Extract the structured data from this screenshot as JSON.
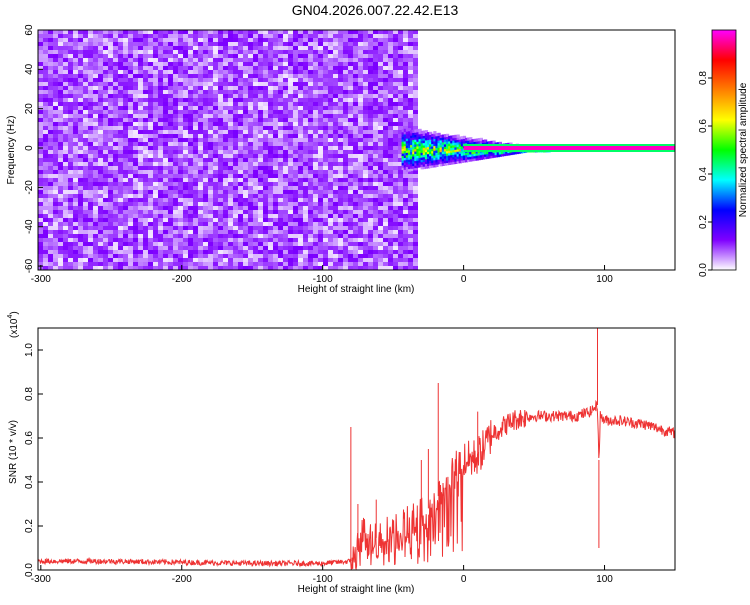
{
  "title": "GN04.2026.007.22.42.E13",
  "chart_data": [
    {
      "type": "heatmap",
      "xlabel": "Height of straight line (km)",
      "ylabel": "Frequency (Hz)",
      "xlim": [
        -302,
        150
      ],
      "ylim": [
        -62,
        60
      ],
      "xticks": [
        -300,
        -200,
        -100,
        0,
        100
      ],
      "yticks": [
        -60,
        -40,
        -20,
        0,
        20,
        40,
        60
      ],
      "colorbar": {
        "label": "Normalized spectral amplitude",
        "range": [
          0,
          1
        ],
        "ticks": [
          "0.0",
          "0.2",
          "0.4",
          "0.6",
          "0.8"
        ],
        "colors": [
          "#ffffff",
          "#7f00ff",
          "#0000ff",
          "#00ffff",
          "#00ff00",
          "#ffff00",
          "#ff7f00",
          "#ff0000",
          "#ff00ff"
        ]
      },
      "regions": [
        {
          "x_range": [
            -302,
            -34
          ],
          "freq_range": [
            -62,
            60
          ],
          "amplitude": 0.1
        },
        {
          "x_range": [
            -44,
            60
          ],
          "freq_range": [
            -12,
            12
          ],
          "amplitude": 0.5
        },
        {
          "x_range": [
            0,
            150
          ],
          "freq_range": [
            -1,
            1
          ],
          "amplitude": 0.97
        }
      ]
    },
    {
      "type": "line",
      "xlabel": "Height of straight line (km)",
      "ylabel": "SNR (10 * v/v)",
      "y_multiplier": "(x10",
      "y_multiplier_exp": "4",
      "y_multiplier_close": ")",
      "xlim": [
        -302,
        150
      ],
      "ylim": [
        0,
        1.1
      ],
      "xticks": [
        -300,
        -200,
        -100,
        0,
        100
      ],
      "yticks": [
        "0.0",
        "0.2",
        "0.4",
        "0.6",
        "0.8",
        "1.0"
      ],
      "series": [
        {
          "color": "#ee3333",
          "x": [
            -302,
            -250,
            -200,
            -150,
            -100,
            -80,
            -76,
            -72,
            -70,
            -65,
            -60,
            -50,
            -40,
            -35,
            -30,
            -25,
            -20,
            -15,
            -10,
            -5,
            0,
            5,
            10,
            15,
            20,
            25,
            30,
            35,
            40,
            50,
            60,
            70,
            80,
            90,
            95,
            96,
            97,
            100,
            110,
            120,
            130,
            140,
            150
          ],
          "y": [
            0.04,
            0.04,
            0.035,
            0.03,
            0.03,
            0.04,
            0.06,
            0.18,
            0.15,
            0.14,
            0.15,
            0.17,
            0.2,
            0.22,
            0.24,
            0.28,
            0.32,
            0.36,
            0.4,
            0.46,
            0.5,
            0.5,
            0.52,
            0.56,
            0.62,
            0.64,
            0.66,
            0.68,
            0.69,
            0.7,
            0.7,
            0.7,
            0.7,
            0.72,
            0.75,
            0.5,
            0.7,
            0.68,
            0.68,
            0.67,
            0.66,
            0.64,
            0.62
          ]
        }
      ],
      "spikes": [
        {
          "x": -80,
          "y": 0.65
        },
        {
          "x": -75,
          "y": 0.3
        },
        {
          "x": -62,
          "y": 0.32
        },
        {
          "x": -30,
          "y": 0.5
        },
        {
          "x": -25,
          "y": 0.55
        },
        {
          "x": -18,
          "y": 0.85
        },
        {
          "x": 10,
          "y": 0.72
        },
        {
          "x": 95,
          "y": 1.1
        },
        {
          "x": 96,
          "y": 0.1
        }
      ]
    }
  ]
}
